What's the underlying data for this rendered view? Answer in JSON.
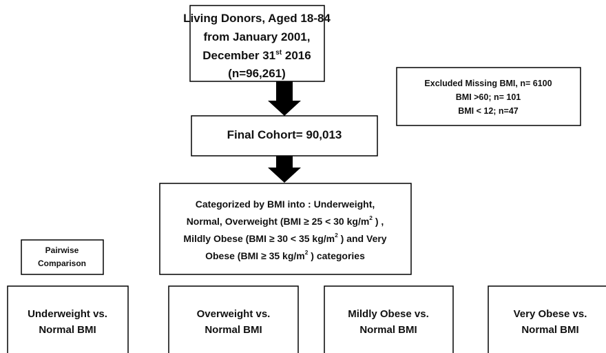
{
  "source": {
    "lines": [
      [
        {
          "text": "Living Donors, Aged 18-84"
        }
      ],
      [
        {
          "text": "from January 2001,"
        }
      ],
      [
        {
          "text": "December 31"
        },
        {
          "sup": "st"
        },
        {
          "text": " 2016"
        }
      ],
      [
        {
          "text": "(n=96,261)"
        }
      ]
    ]
  },
  "excluded": {
    "lines": [
      [
        {
          "text": "Excluded Missing BMI, n= 6100"
        }
      ],
      [
        {
          "text": "BMI >60; n= 101"
        }
      ],
      [
        {
          "text": "BMI < 12; n=47"
        }
      ]
    ]
  },
  "final_cohort": {
    "lines": [
      [
        {
          "text": "Final Cohort= 90,013"
        }
      ]
    ]
  },
  "categorized": {
    "lines": [
      [
        {
          "text": "Categorized by BMI into : Underweight,"
        }
      ],
      [
        {
          "text": "Normal, Overweight (BMI ≥ 25 < 30 kg/m"
        },
        {
          "sup": "2"
        },
        {
          "text": " ) ,"
        }
      ],
      [
        {
          "text": "Mildly Obese (BMI ≥ 30 < 35 kg/m"
        },
        {
          "sup": "2"
        },
        {
          "text": " ) and Very"
        }
      ],
      [
        {
          "text": "Obese (BMI ≥ 35 kg/m"
        },
        {
          "sup": "2"
        },
        {
          "text": " ) categories"
        }
      ]
    ]
  },
  "pairwise": {
    "lines": [
      [
        {
          "text": "Pairwise"
        }
      ],
      [
        {
          "text": "Comparison"
        }
      ]
    ]
  },
  "comparisons": [
    {
      "lines": [
        [
          {
            "text": "Underweight vs."
          }
        ],
        [
          {
            "text": "Normal BMI"
          }
        ]
      ]
    },
    {
      "lines": [
        [
          {
            "text": "Overweight vs."
          }
        ],
        [
          {
            "text": "Normal BMI"
          }
        ]
      ]
    },
    {
      "lines": [
        [
          {
            "text": "Mildly Obese vs."
          }
        ],
        [
          {
            "text": "Normal BMI"
          }
        ]
      ]
    },
    {
      "lines": [
        [
          {
            "text": "Very Obese vs."
          }
        ],
        [
          {
            "text": "Normal BMI"
          }
        ]
      ]
    }
  ]
}
